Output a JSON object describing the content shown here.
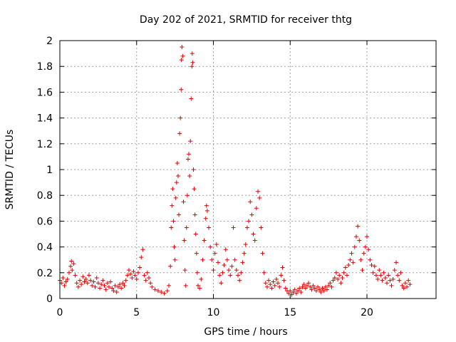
{
  "chart_data": {
    "type": "scatter",
    "title": "Day 202 of 2021, SRMTID for receiver thtg",
    "xlabel": "GPS time / hours",
    "ylabel": "SRMTID / TECUs",
    "xlim": [
      0,
      24.5
    ],
    "ylim": [
      0,
      2
    ],
    "xticks": [
      0,
      5,
      10,
      15,
      20
    ],
    "xtick_labels": [
      "0",
      "5",
      "10",
      "15",
      "20"
    ],
    "yticks": [
      0,
      0.2,
      0.4,
      0.6,
      0.8,
      1,
      1.2,
      1.4,
      1.6,
      1.8,
      2
    ],
    "ytick_labels": [
      "0",
      "0.2",
      "0.4",
      "0.6",
      "0.8",
      "1",
      "1.2",
      "1.4",
      "1.6",
      "1.8",
      "2"
    ],
    "grid": true,
    "marker": "plus",
    "color": "#e00000",
    "series": [
      {
        "name": "SRMTID",
        "points": [
          [
            0.0,
            0.14
          ],
          [
            0.1,
            0.12
          ],
          [
            0.2,
            0.16
          ],
          [
            0.3,
            0.1
          ],
          [
            0.4,
            0.13
          ],
          [
            0.5,
            0.15
          ],
          [
            0.6,
            0.2
          ],
          [
            0.7,
            0.25
          ],
          [
            0.75,
            0.29
          ],
          [
            0.8,
            0.22
          ],
          [
            0.9,
            0.27
          ],
          [
            1.0,
            0.18
          ],
          [
            1.1,
            0.12
          ],
          [
            1.2,
            0.09
          ],
          [
            1.3,
            0.14
          ],
          [
            1.4,
            0.11
          ],
          [
            1.5,
            0.17
          ],
          [
            1.6,
            0.13
          ],
          [
            1.7,
            0.15
          ],
          [
            1.8,
            0.12
          ],
          [
            1.9,
            0.18
          ],
          [
            2.0,
            0.14
          ],
          [
            2.1,
            0.1
          ],
          [
            2.2,
            0.13
          ],
          [
            2.3,
            0.09
          ],
          [
            2.4,
            0.16
          ],
          [
            2.5,
            0.12
          ],
          [
            2.6,
            0.08
          ],
          [
            2.7,
            0.11
          ],
          [
            2.8,
            0.14
          ],
          [
            2.9,
            0.1
          ],
          [
            3.0,
            0.07
          ],
          [
            3.1,
            0.12
          ],
          [
            3.2,
            0.09
          ],
          [
            3.3,
            0.13
          ],
          [
            3.4,
            0.08
          ],
          [
            3.5,
            0.06
          ],
          [
            3.6,
            0.1
          ],
          [
            3.7,
            0.05
          ],
          [
            3.8,
            0.09
          ],
          [
            3.9,
            0.11
          ],
          [
            4.0,
            0.08
          ],
          [
            4.1,
            0.12
          ],
          [
            4.2,
            0.1
          ],
          [
            4.3,
            0.14
          ],
          [
            4.4,
            0.18
          ],
          [
            4.5,
            0.22
          ],
          [
            4.6,
            0.19
          ],
          [
            4.7,
            0.16
          ],
          [
            4.8,
            0.21
          ],
          [
            4.9,
            0.18
          ],
          [
            5.0,
            0.15
          ],
          [
            5.1,
            0.2
          ],
          [
            5.2,
            0.24
          ],
          [
            5.3,
            0.32
          ],
          [
            5.4,
            0.38
          ],
          [
            5.5,
            0.18
          ],
          [
            5.6,
            0.14
          ],
          [
            5.7,
            0.2
          ],
          [
            5.8,
            0.16
          ],
          [
            5.9,
            0.12
          ],
          [
            6.0,
            0.09
          ],
          [
            6.2,
            0.07
          ],
          [
            6.4,
            0.06
          ],
          [
            6.6,
            0.05
          ],
          [
            6.8,
            0.04
          ],
          [
            7.0,
            0.06
          ],
          [
            7.1,
            0.1
          ],
          [
            7.2,
            0.25
          ],
          [
            7.25,
            0.55
          ],
          [
            7.3,
            0.72
          ],
          [
            7.35,
            0.85
          ],
          [
            7.4,
            0.6
          ],
          [
            7.45,
            0.4
          ],
          [
            7.5,
            0.3
          ],
          [
            7.55,
            0.78
          ],
          [
            7.6,
            0.9
          ],
          [
            7.65,
            1.05
          ],
          [
            7.7,
            0.95
          ],
          [
            7.75,
            0.65
          ],
          [
            7.8,
            1.28
          ],
          [
            7.85,
            1.4
          ],
          [
            7.9,
            1.62
          ],
          [
            7.92,
            1.85
          ],
          [
            7.95,
            1.95
          ],
          [
            8.0,
            1.88
          ],
          [
            8.05,
            0.75
          ],
          [
            8.1,
            0.45
          ],
          [
            8.15,
            0.22
          ],
          [
            8.2,
            0.1
          ],
          [
            8.25,
            0.55
          ],
          [
            8.3,
            0.8
          ],
          [
            8.35,
            1.08
          ],
          [
            8.4,
            1.12
          ],
          [
            8.45,
            0.95
          ],
          [
            8.5,
            1.22
          ],
          [
            8.55,
            1.55
          ],
          [
            8.6,
            1.8
          ],
          [
            8.62,
            1.9
          ],
          [
            8.65,
            1.83
          ],
          [
            8.7,
            1.0
          ],
          [
            8.75,
            0.85
          ],
          [
            8.8,
            0.65
          ],
          [
            8.85,
            0.5
          ],
          [
            8.9,
            0.35
          ],
          [
            8.95,
            0.2
          ],
          [
            9.0,
            0.1
          ],
          [
            9.1,
            0.08
          ],
          [
            9.2,
            0.15
          ],
          [
            9.3,
            0.3
          ],
          [
            9.4,
            0.45
          ],
          [
            9.5,
            0.62
          ],
          [
            9.55,
            0.72
          ],
          [
            9.6,
            0.68
          ],
          [
            9.7,
            0.55
          ],
          [
            9.8,
            0.4
          ],
          [
            9.9,
            0.3
          ],
          [
            10.0,
            0.22
          ],
          [
            10.1,
            0.35
          ],
          [
            10.2,
            0.42
          ],
          [
            10.3,
            0.28
          ],
          [
            10.4,
            0.18
          ],
          [
            10.5,
            0.12
          ],
          [
            10.6,
            0.2
          ],
          [
            10.7,
            0.26
          ],
          [
            10.8,
            0.38
          ],
          [
            10.9,
            0.3
          ],
          [
            11.0,
            0.22
          ],
          [
            11.1,
            0.18
          ],
          [
            11.2,
            0.25
          ],
          [
            11.3,
            0.55
          ],
          [
            11.4,
            0.3
          ],
          [
            11.5,
            0.22
          ],
          [
            11.6,
            0.18
          ],
          [
            11.7,
            0.14
          ],
          [
            11.8,
            0.2
          ],
          [
            11.9,
            0.28
          ],
          [
            12.0,
            0.35
          ],
          [
            12.1,
            0.42
          ],
          [
            12.2,
            0.55
          ],
          [
            12.3,
            0.6
          ],
          [
            12.4,
            0.75
          ],
          [
            12.5,
            0.65
          ],
          [
            12.6,
            0.5
          ],
          [
            12.7,
            0.45
          ],
          [
            12.8,
            0.7
          ],
          [
            12.9,
            0.83
          ],
          [
            13.0,
            0.78
          ],
          [
            13.1,
            0.55
          ],
          [
            13.2,
            0.35
          ],
          [
            13.3,
            0.2
          ],
          [
            13.4,
            0.12
          ],
          [
            13.5,
            0.09
          ],
          [
            13.6,
            0.14
          ],
          [
            13.7,
            0.11
          ],
          [
            13.8,
            0.08
          ],
          [
            13.9,
            0.13
          ],
          [
            14.0,
            0.1
          ],
          [
            14.1,
            0.15
          ],
          [
            14.2,
            0.12
          ],
          [
            14.3,
            0.09
          ],
          [
            14.4,
            0.18
          ],
          [
            14.5,
            0.24
          ],
          [
            14.6,
            0.14
          ],
          [
            14.7,
            0.08
          ],
          [
            14.8,
            0.06
          ],
          [
            14.9,
            0.04
          ],
          [
            15.0,
            0.06
          ],
          [
            15.1,
            0.03
          ],
          [
            15.2,
            0.05
          ],
          [
            15.3,
            0.07
          ],
          [
            15.4,
            0.04
          ],
          [
            15.5,
            0.06
          ],
          [
            15.6,
            0.08
          ],
          [
            15.7,
            0.05
          ],
          [
            15.8,
            0.09
          ],
          [
            15.9,
            0.11
          ],
          [
            16.0,
            0.08
          ],
          [
            16.1,
            0.1
          ],
          [
            16.2,
            0.12
          ],
          [
            16.3,
            0.09
          ],
          [
            16.4,
            0.07
          ],
          [
            16.5,
            0.1
          ],
          [
            16.6,
            0.08
          ],
          [
            16.7,
            0.06
          ],
          [
            16.8,
            0.09
          ],
          [
            16.9,
            0.07
          ],
          [
            17.0,
            0.05
          ],
          [
            17.1,
            0.08
          ],
          [
            17.2,
            0.06
          ],
          [
            17.3,
            0.09
          ],
          [
            17.4,
            0.07
          ],
          [
            17.5,
            0.1
          ],
          [
            17.6,
            0.12
          ],
          [
            17.7,
            0.09
          ],
          [
            17.8,
            0.14
          ],
          [
            17.9,
            0.16
          ],
          [
            18.0,
            0.2
          ],
          [
            18.1,
            0.15
          ],
          [
            18.2,
            0.18
          ],
          [
            18.3,
            0.12
          ],
          [
            18.4,
            0.16
          ],
          [
            18.5,
            0.2
          ],
          [
            18.6,
            0.24
          ],
          [
            18.7,
            0.18
          ],
          [
            18.8,
            0.26
          ],
          [
            18.9,
            0.3
          ],
          [
            19.0,
            0.35
          ],
          [
            19.1,
            0.28
          ],
          [
            19.2,
            0.4
          ],
          [
            19.3,
            0.48
          ],
          [
            19.4,
            0.56
          ],
          [
            19.5,
            0.45
          ],
          [
            19.6,
            0.3
          ],
          [
            19.7,
            0.22
          ],
          [
            19.8,
            0.35
          ],
          [
            19.9,
            0.4
          ],
          [
            20.0,
            0.48
          ],
          [
            20.1,
            0.38
          ],
          [
            20.2,
            0.3
          ],
          [
            20.3,
            0.26
          ],
          [
            20.4,
            0.2
          ],
          [
            20.5,
            0.25
          ],
          [
            20.6,
            0.18
          ],
          [
            20.7,
            0.15
          ],
          [
            20.8,
            0.22
          ],
          [
            20.9,
            0.18
          ],
          [
            21.0,
            0.14
          ],
          [
            21.1,
            0.2
          ],
          [
            21.2,
            0.16
          ],
          [
            21.3,
            0.12
          ],
          [
            21.4,
            0.18
          ],
          [
            21.5,
            0.14
          ],
          [
            21.6,
            0.1
          ],
          [
            21.7,
            0.15
          ],
          [
            21.8,
            0.22
          ],
          [
            21.9,
            0.28
          ],
          [
            22.0,
            0.18
          ],
          [
            22.1,
            0.14
          ],
          [
            22.2,
            0.2
          ],
          [
            22.3,
            0.1
          ],
          [
            22.4,
            0.08
          ],
          [
            22.5,
            0.12
          ],
          [
            22.6,
            0.09
          ],
          [
            22.7,
            0.14
          ],
          [
            22.8,
            0.11
          ]
        ]
      }
    ]
  }
}
